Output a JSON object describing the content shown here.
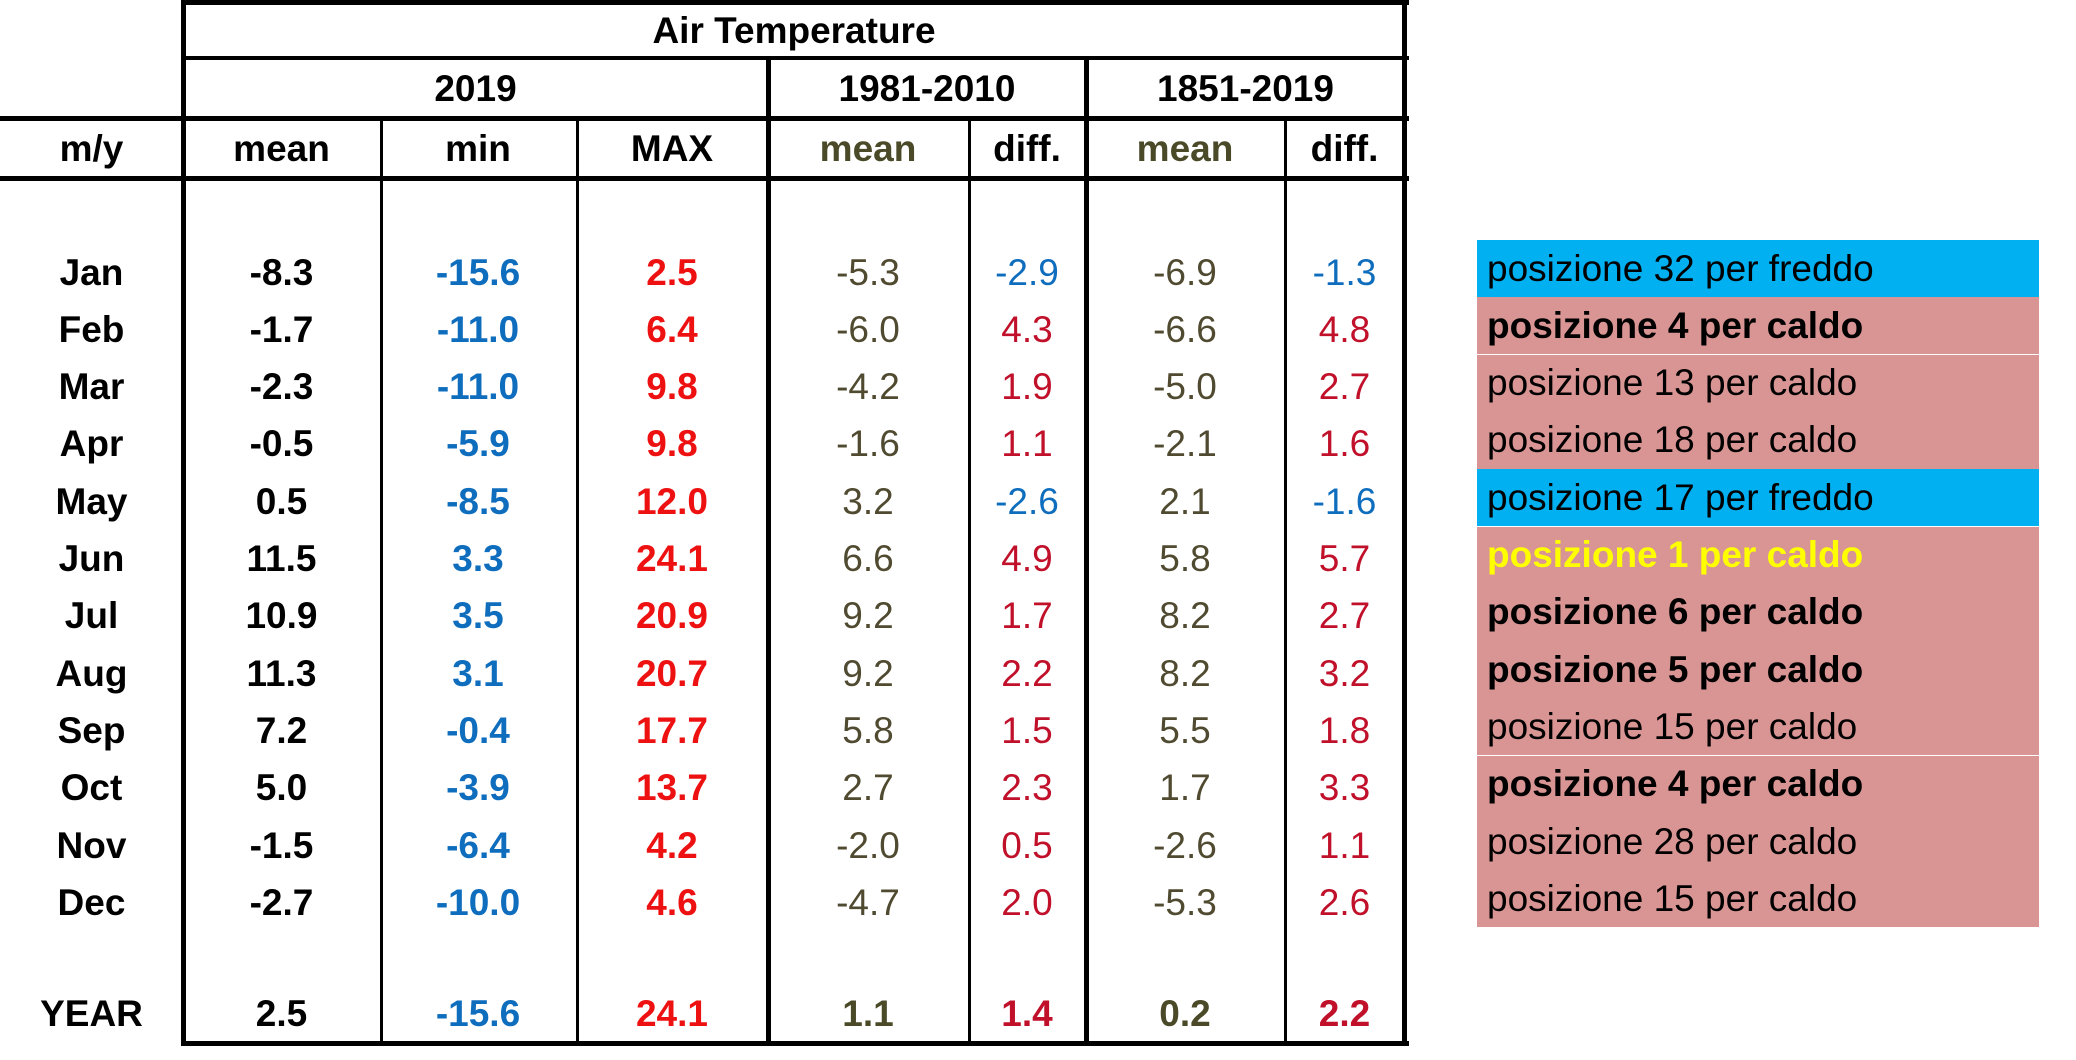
{
  "table": {
    "title": "Air Temperature",
    "groups": {
      "g2019": "2019",
      "g1981": "1981-2010",
      "g1851": "1851-2019"
    },
    "columns": {
      "my": "m/y",
      "mean2019": "mean",
      "min2019": "min",
      "max2019": "MAX",
      "mean1981": "mean",
      "diff1981": "diff.",
      "mean1851": "mean",
      "diff1851": "diff."
    },
    "rows": [
      {
        "month": "Jan",
        "mean": "-8.3",
        "min": "-15.6",
        "max": "2.5",
        "mean1981": "-5.3",
        "diff1981": "-2.9",
        "mean1851": "-6.9",
        "diff1851": "-1.3"
      },
      {
        "month": "Feb",
        "mean": "-1.7",
        "min": "-11.0",
        "max": "6.4",
        "mean1981": "-6.0",
        "diff1981": "4.3",
        "mean1851": "-6.6",
        "diff1851": "4.8"
      },
      {
        "month": "Mar",
        "mean": "-2.3",
        "min": "-11.0",
        "max": "9.8",
        "mean1981": "-4.2",
        "diff1981": "1.9",
        "mean1851": "-5.0",
        "diff1851": "2.7"
      },
      {
        "month": "Apr",
        "mean": "-0.5",
        "min": "-5.9",
        "max": "9.8",
        "mean1981": "-1.6",
        "diff1981": "1.1",
        "mean1851": "-2.1",
        "diff1851": "1.6"
      },
      {
        "month": "May",
        "mean": "0.5",
        "min": "-8.5",
        "max": "12.0",
        "mean1981": "3.2",
        "diff1981": "-2.6",
        "mean1851": "2.1",
        "diff1851": "-1.6"
      },
      {
        "month": "Jun",
        "mean": "11.5",
        "min": "3.3",
        "max": "24.1",
        "mean1981": "6.6",
        "diff1981": "4.9",
        "mean1851": "5.8",
        "diff1851": "5.7"
      },
      {
        "month": "Jul",
        "mean": "10.9",
        "min": "3.5",
        "max": "20.9",
        "mean1981": "9.2",
        "diff1981": "1.7",
        "mean1851": "8.2",
        "diff1851": "2.7"
      },
      {
        "month": "Aug",
        "mean": "11.3",
        "min": "3.1",
        "max": "20.7",
        "mean1981": "9.2",
        "diff1981": "2.2",
        "mean1851": "8.2",
        "diff1851": "3.2"
      },
      {
        "month": "Sep",
        "mean": "7.2",
        "min": "-0.4",
        "max": "17.7",
        "mean1981": "5.8",
        "diff1981": "1.5",
        "mean1851": "5.5",
        "diff1851": "1.8"
      },
      {
        "month": "Oct",
        "mean": "5.0",
        "min": "-3.9",
        "max": "13.7",
        "mean1981": "2.7",
        "diff1981": "2.3",
        "mean1851": "1.7",
        "diff1851": "3.3"
      },
      {
        "month": "Nov",
        "mean": "-1.5",
        "min": "-6.4",
        "max": "4.2",
        "mean1981": "-2.0",
        "diff1981": "0.5",
        "mean1851": "-2.6",
        "diff1851": "1.1"
      },
      {
        "month": "Dec",
        "mean": "-2.7",
        "min": "-10.0",
        "max": "4.6",
        "mean1981": "-4.7",
        "diff1981": "2.0",
        "mean1851": "-5.3",
        "diff1851": "2.6"
      }
    ],
    "year": {
      "month": "YEAR",
      "mean": "2.5",
      "min": "-15.6",
      "max": "24.1",
      "mean1981": "1.1",
      "diff1981": "1.4",
      "mean1851": "0.2",
      "diff1851": "2.2"
    }
  },
  "rankings": [
    {
      "text": "posizione 32 per freddo",
      "kind": "cold",
      "style": "normal"
    },
    {
      "text": "posizione 4 per caldo",
      "kind": "warm",
      "style": "bold"
    },
    {
      "text": "posizione 13 per caldo",
      "kind": "warm",
      "style": "normal"
    },
    {
      "text": "posizione 18 per caldo",
      "kind": "warm",
      "style": "normal"
    },
    {
      "text": "posizione 17 per freddo",
      "kind": "cold",
      "style": "normal"
    },
    {
      "text": "posizione 1 per caldo",
      "kind": "warm",
      "style": "yellow"
    },
    {
      "text": "posizione 6 per caldo",
      "kind": "warm",
      "style": "bold"
    },
    {
      "text": "posizione 5 per caldo",
      "kind": "warm",
      "style": "bold"
    },
    {
      "text": "posizione 15 per caldo",
      "kind": "warm",
      "style": "normal"
    },
    {
      "text": "posizione 4 per caldo",
      "kind": "warm",
      "style": "bold"
    },
    {
      "text": "posizione 28 per caldo",
      "kind": "warm",
      "style": "normal"
    },
    {
      "text": "posizione 15 per caldo",
      "kind": "warm",
      "style": "normal"
    }
  ],
  "colors": {
    "cold": "#00b0f0",
    "warm": "#d99594",
    "min_values": "#0f6dbd",
    "max_values": "#ee1111",
    "diff_values": "#c0102a",
    "climate_means": "#4f4a30",
    "rank_first": "#ffff00"
  }
}
